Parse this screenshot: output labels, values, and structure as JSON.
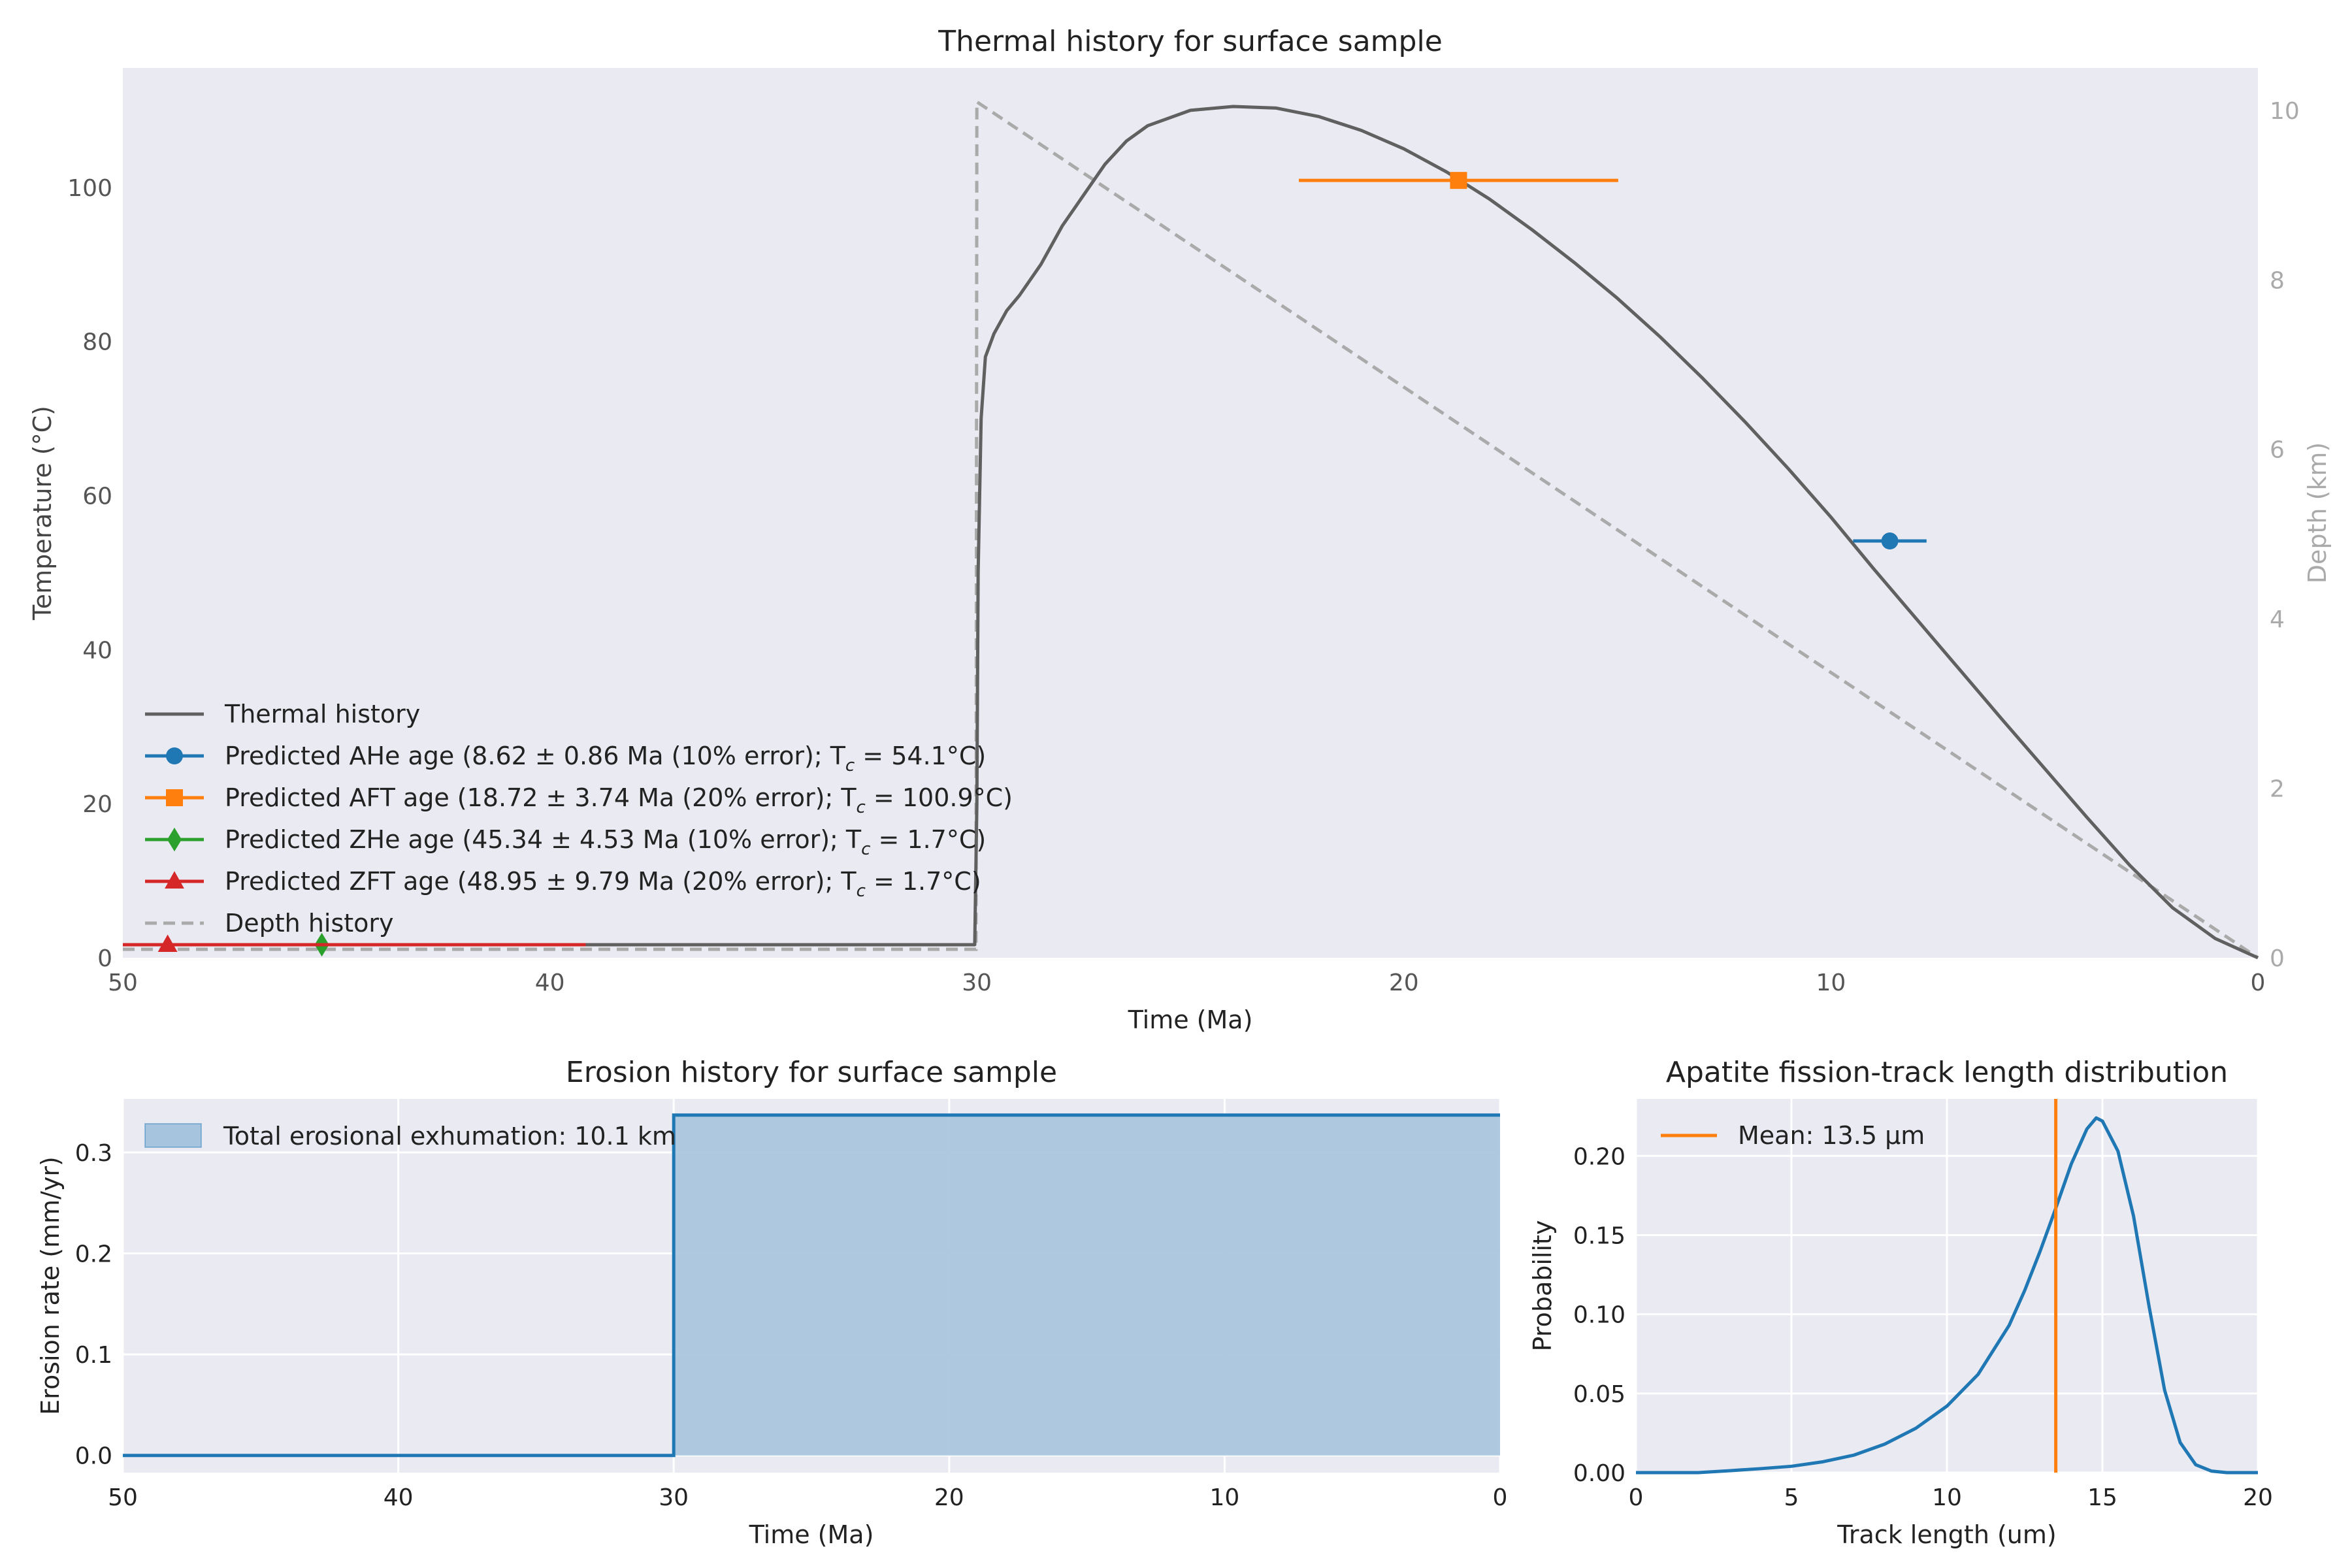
{
  "colors": {
    "background": "#ffffff",
    "panel_bg": "#EAEAF2",
    "grid": "#ffffff",
    "thermal": "#606060",
    "depth": "#AAAAAA",
    "ahe": "#1F77B4",
    "aft": "#FF7F0E",
    "zhe": "#2CA02C",
    "zft": "#D62728",
    "erosion_fill": "#A6C4DD",
    "erosion_line": "#1F77B4",
    "tick_text": "#555555",
    "label_text": "#444444",
    "secondary_axis_text": "#AAAAAA"
  },
  "chart_data": [
    {
      "id": "thermal",
      "type": "line",
      "title": "Thermal history for surface sample",
      "xlabel": "Time (Ma)",
      "ylabel": "Temperature (°C)",
      "y2label": "Depth (km)",
      "xlim": [
        50,
        0
      ],
      "ylim": [
        0,
        115.5
      ],
      "y2lim": [
        0,
        10.5
      ],
      "xticks": [
        50,
        40,
        30,
        20,
        10,
        0
      ],
      "yticks": [
        0,
        20,
        40,
        60,
        80,
        100
      ],
      "y2ticks": [
        0,
        2,
        4,
        6,
        8,
        10
      ],
      "grid": false,
      "legend_position": "lower-left",
      "series": [
        {
          "name": "Thermal history",
          "style": "solid",
          "points": [
            [
              50,
              1.7
            ],
            [
              30.05,
              1.7
            ],
            [
              30.0,
              20
            ],
            [
              29.97,
              50
            ],
            [
              29.9,
              70
            ],
            [
              29.8,
              78
            ],
            [
              29.6,
              81
            ],
            [
              29.3,
              84
            ],
            [
              29.0,
              86
            ],
            [
              28.5,
              90
            ],
            [
              28,
              95
            ],
            [
              27.5,
              99
            ],
            [
              27,
              103
            ],
            [
              26.5,
              106
            ],
            [
              26,
              108
            ],
            [
              25,
              110
            ],
            [
              24,
              110.5
            ],
            [
              23,
              110.3
            ],
            [
              22,
              109.2
            ],
            [
              21,
              107.4
            ],
            [
              20,
              105
            ],
            [
              19,
              102
            ],
            [
              18,
              98.5
            ],
            [
              17,
              94.5
            ],
            [
              16,
              90.2
            ],
            [
              15,
              85.6
            ],
            [
              14,
              80.6
            ],
            [
              13,
              75.2
            ],
            [
              12,
              69.5
            ],
            [
              11,
              63.5
            ],
            [
              10,
              57.2
            ],
            [
              9,
              50.5
            ],
            [
              8,
              44
            ],
            [
              7,
              37.5
            ],
            [
              6,
              31
            ],
            [
              5,
              24.6
            ],
            [
              4,
              18.2
            ],
            [
              3,
              12
            ],
            [
              2,
              6.5
            ],
            [
              1,
              2.5
            ],
            [
              0,
              0
            ]
          ]
        },
        {
          "name": "Depth history",
          "style": "dashed",
          "axis": "y2",
          "points": [
            [
              50,
              0.1
            ],
            [
              30.02,
              0.1
            ],
            [
              30,
              10.1
            ],
            [
              0,
              0
            ]
          ]
        }
      ],
      "ages": [
        {
          "name": "Predicted AHe age (8.62 ± 0.86 Ma (10% error); T",
          "sub": "c",
          "tail": " = 54.1°C)",
          "marker": "circle",
          "color_key": "ahe",
          "age": 8.62,
          "err": 0.86,
          "temp": 54.1
        },
        {
          "name": "Predicted AFT age (18.72 ± 3.74 Ma (20% error); T",
          "sub": "c",
          "tail": " = 100.9°C)",
          "marker": "square",
          "color_key": "aft",
          "age": 18.72,
          "err": 3.74,
          "temp": 100.9
        },
        {
          "name": "Predicted ZHe age (45.34 ± 4.53 Ma (10% error); T",
          "sub": "c",
          "tail": " = 1.7°C)",
          "marker": "diamond",
          "color_key": "zhe",
          "age": 45.34,
          "err": 4.53,
          "temp": 1.7
        },
        {
          "name": "Predicted ZFT age (48.95 ± 9.79 Ma (20% error); T",
          "sub": "c",
          "tail": " = 1.7°C)",
          "marker": "triangle",
          "color_key": "zft",
          "age": 48.95,
          "err": 9.79,
          "temp": 1.7
        }
      ]
    },
    {
      "id": "erosion",
      "type": "area",
      "title": "Erosion history for surface sample",
      "xlabel": "Time (Ma)",
      "ylabel": "Erosion rate (mm/yr)",
      "xlim": [
        50,
        0
      ],
      "ylim": [
        -0.017,
        0.353
      ],
      "xticks": [
        50,
        40,
        30,
        20,
        10,
        0
      ],
      "yticks": [
        0.0,
        0.1,
        0.2,
        0.3
      ],
      "ytick_labels": [
        "0.0",
        "0.1",
        "0.2",
        "0.3"
      ],
      "grid": true,
      "legend_position": "top-left",
      "series": [
        {
          "name": "Total erosional exhumation: 10.1 km",
          "points": [
            [
              50,
              0
            ],
            [
              30,
              0
            ],
            [
              30,
              0.337
            ],
            [
              0,
              0.337
            ]
          ]
        }
      ]
    },
    {
      "id": "aft_length",
      "type": "line",
      "title": "Apatite fission-track length distribution",
      "xlabel": "Track length (um)",
      "ylabel": "Probability",
      "xlim": [
        0,
        20
      ],
      "ylim": [
        0,
        0.236
      ],
      "xticks": [
        0,
        5,
        10,
        15,
        20
      ],
      "yticks": [
        0.0,
        0.05,
        0.1,
        0.15,
        0.2
      ],
      "ytick_labels": [
        "0.00",
        "0.05",
        "0.10",
        "0.15",
        "0.20"
      ],
      "grid": true,
      "legend_position": "top-left",
      "mean": {
        "name": "Mean: 13.5 μm",
        "value": 13.5
      },
      "series": [
        {
          "name": "",
          "points": [
            [
              0,
              0
            ],
            [
              2,
              0
            ],
            [
              3,
              0.0012
            ],
            [
              4,
              0.0025
            ],
            [
              5,
              0.004
            ],
            [
              6,
              0.0068
            ],
            [
              7,
              0.011
            ],
            [
              8,
              0.018
            ],
            [
              9,
              0.028
            ],
            [
              10,
              0.042
            ],
            [
              11,
              0.062
            ],
            [
              12,
              0.093
            ],
            [
              12.5,
              0.115
            ],
            [
              13,
              0.14
            ],
            [
              13.5,
              0.167
            ],
            [
              14,
              0.195
            ],
            [
              14.5,
              0.217
            ],
            [
              14.8,
              0.224
            ],
            [
              15,
              0.222
            ],
            [
              15.5,
              0.203
            ],
            [
              16,
              0.162
            ],
            [
              16.5,
              0.105
            ],
            [
              17,
              0.052
            ],
            [
              17.5,
              0.019
            ],
            [
              18,
              0.005
            ],
            [
              18.5,
              0.001
            ],
            [
              19,
              0
            ],
            [
              20,
              0
            ]
          ]
        }
      ]
    }
  ]
}
